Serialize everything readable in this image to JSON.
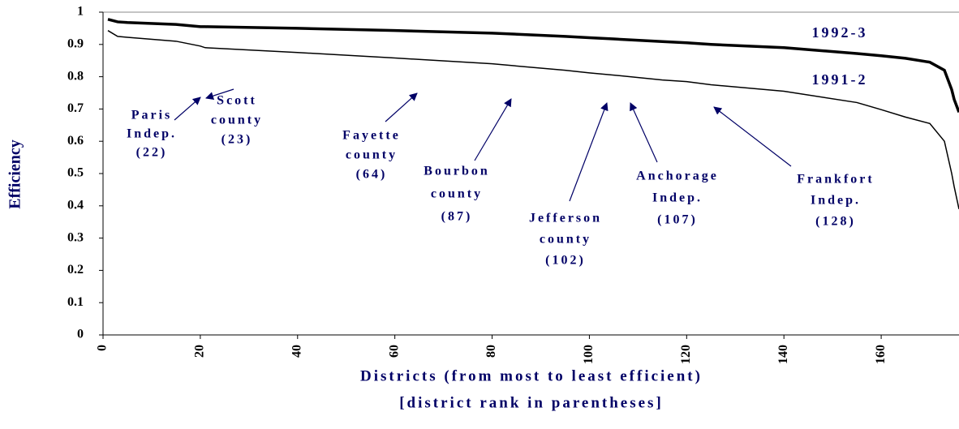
{
  "chart_data": {
    "type": "line",
    "x_label": [
      "Districts (from most to least efficient)",
      "[district rank in parentheses]"
    ],
    "y_label": "Efficiency",
    "x": [
      1,
      3,
      5,
      15,
      20,
      21,
      40,
      60,
      80,
      95,
      100,
      105,
      115,
      120,
      125,
      140,
      155,
      160,
      165,
      170,
      173,
      174.5,
      175,
      176
    ],
    "series": [
      {
        "name": "1992-3",
        "color": "#000000",
        "values": [
          0.978,
          0.97,
          0.968,
          0.962,
          0.955,
          0.955,
          0.95,
          0.943,
          0.935,
          0.925,
          0.921,
          0.917,
          0.909,
          0.905,
          0.9,
          0.89,
          0.872,
          0.865,
          0.857,
          0.845,
          0.82,
          0.76,
          0.73,
          0.69
        ]
      },
      {
        "name": "1991-2",
        "color": "#000000",
        "values": [
          0.943,
          0.925,
          0.922,
          0.91,
          0.895,
          0.89,
          0.875,
          0.858,
          0.84,
          0.82,
          0.812,
          0.805,
          0.79,
          0.785,
          0.775,
          0.755,
          0.72,
          0.698,
          0.675,
          0.655,
          0.6,
          0.5,
          0.46,
          0.39
        ]
      }
    ],
    "xlim": [
      0,
      176
    ],
    "xticks": [
      0,
      20,
      40,
      60,
      80,
      100,
      120,
      140,
      160
    ],
    "ylim": [
      0,
      1
    ],
    "yticks": [
      0,
      0.1,
      0.2,
      0.3,
      0.4,
      0.5,
      0.6,
      0.7,
      0.8,
      0.9,
      1
    ],
    "annotations": [
      [
        "Paris",
        "Indep.",
        "(22)"
      ],
      [
        "Scott",
        "county",
        "(23)"
      ],
      [
        "Fayette",
        "county",
        "(64)"
      ],
      [
        "Bourbon",
        "county",
        "(87)"
      ],
      [
        "Jefferson",
        "county",
        "(102)"
      ],
      [
        "Anchorage",
        "Indep.",
        "(107)"
      ],
      [
        "Frankfort",
        "Indep.",
        "(128)"
      ]
    ]
  }
}
